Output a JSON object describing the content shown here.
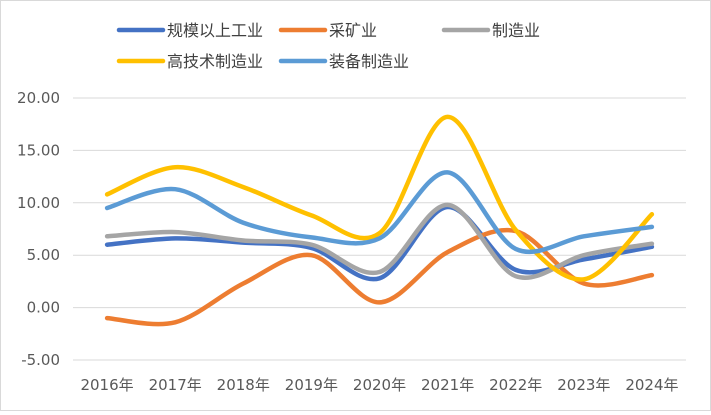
{
  "chart_data": {
    "type": "line",
    "smooth": true,
    "categories": [
      "2016年",
      "2017年",
      "2018年",
      "2019年",
      "2020年",
      "2021年",
      "2022年",
      "2023年",
      "2024年"
    ],
    "ylim": [
      -5,
      20
    ],
    "yticks": [
      -5,
      0,
      5,
      10,
      15,
      20
    ],
    "ytick_labels": [
      "-5.00",
      "0.00",
      "5.00",
      "10.00",
      "15.00",
      "20.00"
    ],
    "grid": true,
    "legend_position": "top",
    "series": [
      {
        "name": "规模以上工业",
        "color": "#4472C4",
        "values": [
          6.0,
          6.6,
          6.2,
          5.7,
          2.8,
          9.6,
          3.6,
          4.6,
          5.8
        ]
      },
      {
        "name": "采矿业",
        "color": "#ED7D31",
        "values": [
          -1.0,
          -1.4,
          2.3,
          5.0,
          0.5,
          5.3,
          7.3,
          2.3,
          3.1
        ]
      },
      {
        "name": "制造业",
        "color": "#A5A5A5",
        "values": [
          6.8,
          7.2,
          6.4,
          6.0,
          3.4,
          9.8,
          3.0,
          5.0,
          6.1
        ]
      },
      {
        "name": "高技术制造业",
        "color": "#FFC000",
        "values": [
          10.8,
          13.4,
          11.5,
          8.8,
          7.1,
          18.2,
          7.4,
          2.7,
          8.9
        ]
      },
      {
        "name": "装备制造业",
        "color": "#5B9BD5",
        "values": [
          9.5,
          11.3,
          8.1,
          6.7,
          6.6,
          12.9,
          5.6,
          6.8,
          7.7
        ]
      }
    ]
  }
}
